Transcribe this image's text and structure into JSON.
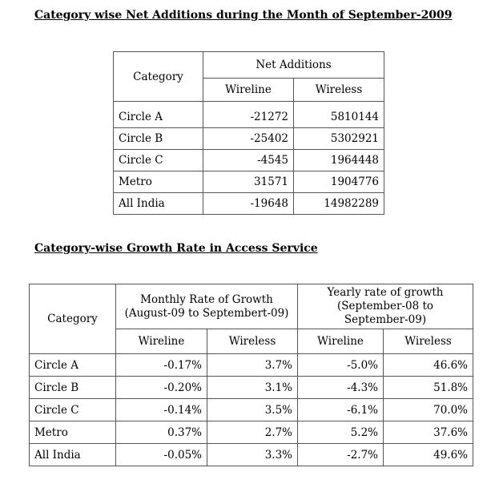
{
  "section1": {
    "title": "Category wise Net Additions during the Month of September-2009",
    "table": {
      "col_category": "Category",
      "group_header": "Net Additions",
      "sub_headers": [
        "Wireline",
        "Wireless"
      ],
      "rows": [
        {
          "category": "Circle A",
          "wireline": "-21272",
          "wireless": "5810144"
        },
        {
          "category": "Circle B",
          "wireline": "-25402",
          "wireless": "5302921"
        },
        {
          "category": "Circle C",
          "wireline": "-4545",
          "wireless": "1964448"
        },
        {
          "category": "Metro",
          "wireline": "31571",
          "wireless": "1904776"
        },
        {
          "category": "All India",
          "wireline": "-19648",
          "wireless": "14982289"
        }
      ]
    }
  },
  "section2": {
    "title": "Category-wise Growth Rate in Access Service",
    "table": {
      "col_category": "Category",
      "group_monthly_line1": "Monthly Rate of Growth",
      "group_monthly_line2": "(August-09 to Septembert-09)",
      "group_yearly_line1": "Yearly rate of growth",
      "group_yearly_line2": "(September-08 to",
      "group_yearly_line3": "September-09)",
      "sub_headers": [
        "Wireline",
        "Wireless",
        "Wireline",
        "Wireless"
      ],
      "rows": [
        {
          "category": "Circle A",
          "m_wireline": "-0.17%",
          "m_wireless": "3.7%",
          "y_wireline": "-5.0%",
          "y_wireless": "46.6%"
        },
        {
          "category": "Circle B",
          "m_wireline": "-0.20%",
          "m_wireless": "3.1%",
          "y_wireline": "-4.3%",
          "y_wireless": "51.8%"
        },
        {
          "category": "Circle C",
          "m_wireline": "-0.14%",
          "m_wireless": "3.5%",
          "y_wireline": "-6.1%",
          "y_wireless": "70.0%"
        },
        {
          "category": "Metro",
          "m_wireline": "0.37%",
          "m_wireless": "2.7%",
          "y_wireline": "5.2%",
          "y_wireless": "37.6%"
        },
        {
          "category": "All India",
          "m_wireline": "-0.05%",
          "m_wireless": "3.3%",
          "y_wireline": "-2.7%",
          "y_wireless": "49.6%"
        }
      ]
    }
  }
}
